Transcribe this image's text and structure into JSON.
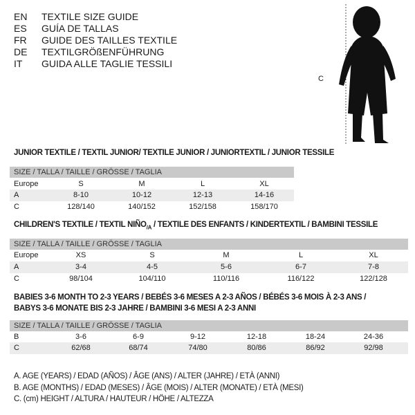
{
  "header": [
    {
      "code": "EN",
      "title": "TEXTILE SIZE GUIDE"
    },
    {
      "code": "ES",
      "title": "GUÍA DE TALLAS"
    },
    {
      "code": "FR",
      "title": "GUIDE DES TAILLES TEXTILE"
    },
    {
      "code": "DE",
      "title": "TEXTILGRÖßENFÜHRUNG"
    },
    {
      "code": "IT",
      "title": "GUIDA ALLE TAGLIE TESSILI"
    }
  ],
  "figure": {
    "label": "C",
    "icon": "child-silhouette-icon"
  },
  "junior": {
    "title": "JUNIOR TEXTILE / TEXTIL JUNIOR/ TEXTILE JUNIOR / JUNIORTEXTIL / JUNIOR TESSILE",
    "size_header": "SIZE / TALLA / TAILLE / GRÖSSE / TAGLIA",
    "rows": [
      {
        "label": "Europe",
        "values": [
          "S",
          "M",
          "L",
          "XL"
        ]
      },
      {
        "label": "A",
        "values": [
          "8-10",
          "10-12",
          "12-13",
          "14-16"
        ]
      },
      {
        "label": "C",
        "values": [
          "128/140",
          "140/152",
          "152/158",
          "158/170"
        ]
      }
    ]
  },
  "children": {
    "title_a": "CHILDREN'S TEXTILE / TEXTIL NIÑO",
    "title_sub": "/A",
    "title_b": " / TEXTILE DES ENFANTS / KINDERTEXTIL / BAMBINI TESSILE",
    "size_header": "SIZE / TALLA / TAILLE / GRÖSSE / TAGLIA",
    "rows": [
      {
        "label": "Europe",
        "values": [
          "XS",
          "S",
          "M",
          "L",
          "XL"
        ]
      },
      {
        "label": "A",
        "values": [
          "3-4",
          "4-5",
          "5-6",
          "6-7",
          "7-8"
        ]
      },
      {
        "label": "C",
        "values": [
          "98/104",
          "104/110",
          "110/116",
          "116/122",
          "122/128"
        ]
      }
    ]
  },
  "babies": {
    "title_line1": "BABIES 3-6 MONTH TO 2-3 YEARS / BEBÉS 3-6 MESES A 2-3 AÑOS / BÉBÉS 3-6 MOIS À 2-3 ANS /",
    "title_line2": "BABYS 3-6 MONATE BIS 2-3 JAHRE / BAMBINI 3-6 MESI A 2-3 ANNI",
    "size_header": "SIZE / TALLA / TAILLE / GRÖSSE / TAGLIA",
    "rows": [
      {
        "label": "B",
        "values": [
          "3-6",
          "6-9",
          "9-12",
          "12-18",
          "18-24",
          "24-36"
        ]
      },
      {
        "label": "C",
        "values": [
          "62/68",
          "68/74",
          "74/80",
          "80/86",
          "86/92",
          "92/98"
        ]
      }
    ]
  },
  "legend": [
    "A. AGE (YEARS) / EDAD (AÑOS) / ÂGE (ANS) / ALTER (JAHRE) / ETÀ (ANNI)",
    "B. AGE (MONTHS) / EDAD (MESES) / ÂGE (MOIS) / ALTER (MONATE) / ETÀ (MESI)",
    "C. (cm) HEIGHT / ALTURA / HAUTEUR / HÖHE / ALTEZZA"
  ]
}
